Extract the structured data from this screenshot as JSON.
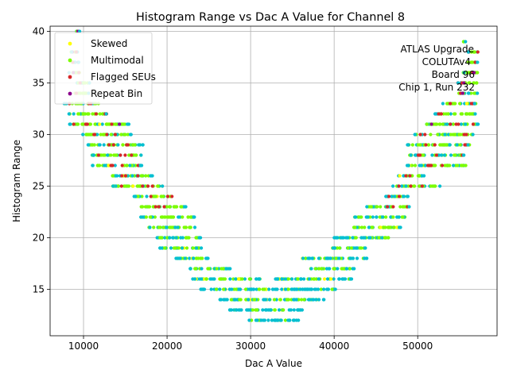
{
  "chart_data": {
    "type": "scatter",
    "title": "Histogram Range vs Dac A Value for Channel 8",
    "xlabel": "Dac A Value",
    "ylabel": "Histogram Range",
    "xlim": [
      6000,
      59500
    ],
    "ylim": [
      10.5,
      40.5
    ],
    "xticks": [
      10000,
      20000,
      30000,
      40000,
      50000
    ],
    "yticks": [
      15,
      20,
      25,
      30,
      35,
      40
    ],
    "grid": true,
    "legend_position": "top-left",
    "series": [
      {
        "name": "Skewed",
        "color": "#ffff00"
      },
      {
        "name": "Multimodal",
        "color": "#7cfc00"
      },
      {
        "name": "Flagged SEUs",
        "color": "#d62728"
      },
      {
        "name": "Repeat Bin",
        "color": "#8b008b"
      }
    ],
    "base_color": "#00bfd0",
    "annotation": [
      "ATLAS Upgrade",
      "COLUTAv4",
      "Board 96",
      "Chip 1, Run 232"
    ],
    "bands": [
      {
        "y": 40,
        "x0": 8800,
        "x1": 9400,
        "side": "L"
      },
      {
        "y": 38,
        "x0": 8400,
        "x1": 9400,
        "side": "L"
      },
      {
        "y": 37,
        "x0": 8500,
        "x1": 9500,
        "side": "L"
      },
      {
        "y": 36,
        "x0": 8300,
        "x1": 10000,
        "side": "L"
      },
      {
        "y": 35,
        "x0": 8800,
        "x1": 10800,
        "side": "L"
      },
      {
        "y": 34,
        "x0": 8500,
        "x1": 10500,
        "side": "L"
      },
      {
        "y": 33,
        "x0": 7800,
        "x1": 11800,
        "side": "L"
      },
      {
        "y": 32,
        "x0": 8200,
        "x1": 12800,
        "side": "L"
      },
      {
        "y": 31,
        "x0": 8500,
        "x1": 15300,
        "side": "L"
      },
      {
        "y": 30,
        "x0": 10000,
        "x1": 15800,
        "side": "L"
      },
      {
        "y": 29,
        "x0": 10500,
        "x1": 17000,
        "side": "L"
      },
      {
        "y": 28,
        "x0": 11000,
        "x1": 17000,
        "side": "L"
      },
      {
        "y": 27,
        "x0": 11000,
        "x1": 16800,
        "side": "L"
      },
      {
        "y": 26,
        "x0": 13200,
        "x1": 18200,
        "side": "L"
      },
      {
        "y": 25,
        "x0": 13500,
        "x1": 19600,
        "side": "L"
      },
      {
        "y": 24,
        "x0": 16200,
        "x1": 20800,
        "side": "L"
      },
      {
        "y": 23,
        "x0": 16800,
        "x1": 22200,
        "side": "L"
      },
      {
        "y": 22,
        "x0": 16800,
        "x1": 23200,
        "side": "L"
      },
      {
        "y": 21,
        "x0": 17800,
        "x1": 23200,
        "side": "L"
      },
      {
        "y": 20,
        "x0": 18800,
        "x1": 24000,
        "side": "L"
      },
      {
        "y": 19,
        "x0": 19000,
        "x1": 24000,
        "side": "L"
      },
      {
        "y": 18,
        "x0": 21000,
        "x1": 25000,
        "side": "L"
      },
      {
        "y": 17,
        "x0": 22600,
        "x1": 27600,
        "side": "L"
      },
      {
        "y": 16,
        "x0": 23200,
        "x1": 31200,
        "side": "L"
      },
      {
        "y": 15,
        "x0": 24200,
        "x1": 40000,
        "side": "C"
      },
      {
        "y": 14,
        "x0": 26400,
        "x1": 38600,
        "side": "C"
      },
      {
        "y": 13,
        "x0": 27600,
        "x1": 36200,
        "side": "C"
      },
      {
        "y": 12,
        "x0": 30000,
        "x1": 35600,
        "side": "C"
      },
      {
        "y": 16,
        "x0": 33000,
        "x1": 42000,
        "side": "R"
      },
      {
        "y": 17,
        "x0": 37200,
        "x1": 42400,
        "side": "R"
      },
      {
        "y": 18,
        "x0": 36200,
        "x1": 43800,
        "side": "R"
      },
      {
        "y": 19,
        "x0": 39800,
        "x1": 43800,
        "side": "R"
      },
      {
        "y": 20,
        "x0": 40200,
        "x1": 46800,
        "side": "R"
      },
      {
        "y": 21,
        "x0": 42000,
        "x1": 47800,
        "side": "R"
      },
      {
        "y": 22,
        "x0": 42400,
        "x1": 48600,
        "side": "R"
      },
      {
        "y": 23,
        "x0": 43800,
        "x1": 48800,
        "side": "R"
      },
      {
        "y": 24,
        "x0": 46000,
        "x1": 49200,
        "side": "R"
      },
      {
        "y": 25,
        "x0": 47200,
        "x1": 52600,
        "side": "R"
      },
      {
        "y": 26,
        "x0": 47600,
        "x1": 50600,
        "side": "R"
      },
      {
        "y": 27,
        "x0": 48800,
        "x1": 55800,
        "side": "R"
      },
      {
        "y": 28,
        "x0": 49000,
        "x1": 55400,
        "side": "R"
      },
      {
        "y": 29,
        "x0": 48800,
        "x1": 56200,
        "side": "R"
      },
      {
        "y": 30,
        "x0": 49800,
        "x1": 56600,
        "side": "R"
      },
      {
        "y": 31,
        "x0": 51000,
        "x1": 57200,
        "side": "R"
      },
      {
        "y": 32,
        "x0": 52000,
        "x1": 57000,
        "side": "R"
      },
      {
        "y": 33,
        "x0": 53000,
        "x1": 57000,
        "side": "R"
      },
      {
        "y": 34,
        "x0": 54800,
        "x1": 57000,
        "side": "R"
      },
      {
        "y": 35,
        "x0": 54800,
        "x1": 57200,
        "side": "R"
      },
      {
        "y": 36,
        "x0": 55400,
        "x1": 57200,
        "side": "R"
      },
      {
        "y": 37,
        "x0": 56000,
        "x1": 57200,
        "side": "R"
      },
      {
        "y": 38,
        "x0": 56000,
        "x1": 57200,
        "side": "R"
      },
      {
        "y": 39,
        "x0": 55400,
        "x1": 55600,
        "side": "R"
      }
    ]
  }
}
